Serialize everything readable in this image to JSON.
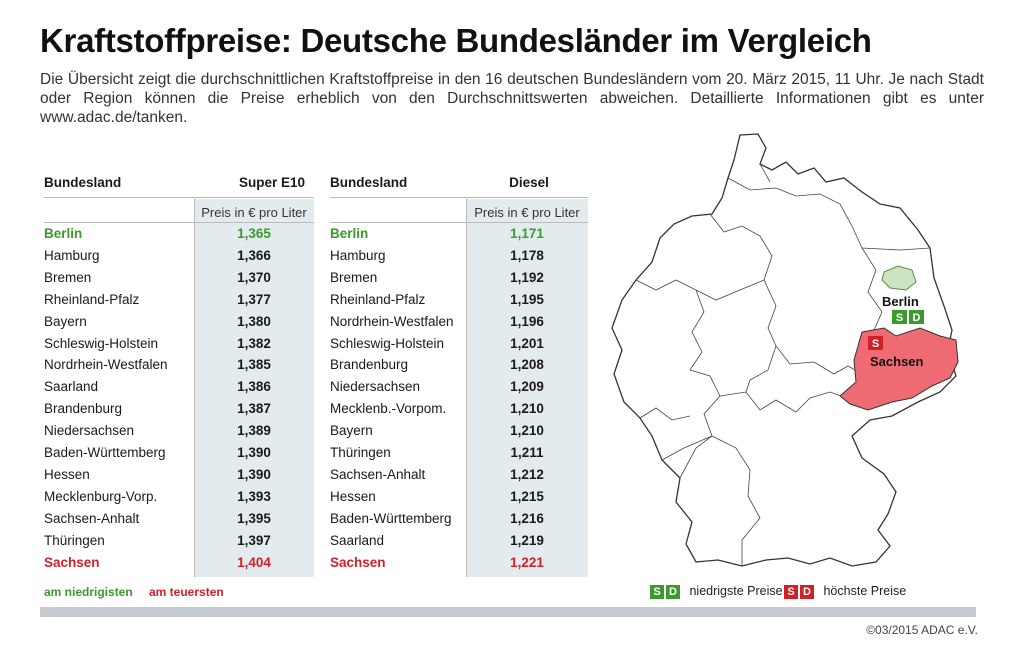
{
  "title": "Kraftstoffpreise: Deutsche Bundesländer im Vergleich",
  "intro": "Die Übersicht zeigt die durchschnittlichen Kraftstoffpreise in den 16 deutschen Bundesländern vom 20. März 2015, 11 Uhr. Je nach Stadt oder Region können die Preise erheblich von den Durchschnittswerten abweichen. Detaillierte Informationen gibt es unter www.adac.de/tanken.",
  "colors": {
    "green": "#3a9a2b",
    "red": "#d0202a",
    "shade": "#e4ebef",
    "sachsen_fill": "#ee6b74",
    "berlin_fill": "#cde4c2"
  },
  "super": {
    "col_label": "Bundesland",
    "fuel_label": "Super E10",
    "unit": "Preis in € pro Liter",
    "rows": [
      {
        "name": "Berlin",
        "value": "1,365"
      },
      {
        "name": "Hamburg",
        "value": "1,366"
      },
      {
        "name": "Bremen",
        "value": "1,370"
      },
      {
        "name": "Rheinland-Pfalz",
        "value": "1,377"
      },
      {
        "name": "Bayern",
        "value": "1,380"
      },
      {
        "name": "Schleswig-Holstein",
        "value": "1,382"
      },
      {
        "name": "Nordrhein-Westfalen",
        "value": "1,385"
      },
      {
        "name": "Saarland",
        "value": "1,386"
      },
      {
        "name": "Brandenburg",
        "value": "1,387"
      },
      {
        "name": "Niedersachsen",
        "value": "1,389"
      },
      {
        "name": "Baden-Württemberg",
        "value": "1,390"
      },
      {
        "name": "Hessen",
        "value": "1,390"
      },
      {
        "name": "Mecklenburg-Vorp.",
        "value": "1,393"
      },
      {
        "name": "Sachsen-Anhalt",
        "value": "1,395"
      },
      {
        "name": "Thüringen",
        "value": "1,397"
      },
      {
        "name": "Sachsen",
        "value": "1,404"
      }
    ]
  },
  "diesel": {
    "col_label": "Bundesland",
    "fuel_label": "Diesel",
    "unit": "Preis in € pro Liter",
    "rows": [
      {
        "name": "Berlin",
        "value": "1,171"
      },
      {
        "name": "Hamburg",
        "value": "1,178"
      },
      {
        "name": "Bremen",
        "value": "1,192"
      },
      {
        "name": "Rheinland-Pfalz",
        "value": "1,195"
      },
      {
        "name": "Nordrhein-Westfalen",
        "value": "1,196"
      },
      {
        "name": "Schleswig-Holstein",
        "value": "1,201"
      },
      {
        "name": "Brandenburg",
        "value": "1,208"
      },
      {
        "name": "Niedersachsen",
        "value": "1,209"
      },
      {
        "name": "Mecklenb.-Vorpom.",
        "value": "1,210"
      },
      {
        "name": "Bayern",
        "value": "1,210"
      },
      {
        "name": "Thüringen",
        "value": "1,211"
      },
      {
        "name": "Sachsen-Anhalt",
        "value": "1,212"
      },
      {
        "name": "Hessen",
        "value": "1,215"
      },
      {
        "name": "Baden-Württemberg",
        "value": "1,216"
      },
      {
        "name": "Saarland",
        "value": "1,219"
      },
      {
        "name": "Sachsen",
        "value": "1,221"
      }
    ]
  },
  "footer": {
    "lowest": "am niedrigisten",
    "highest": "am teuersten",
    "badge_s": "S",
    "badge_d": "D",
    "legend_low": "niedrigste Preise",
    "legend_high": "höchste Preise",
    "copyright": "©03/2015 ADAC e.V."
  },
  "map": {
    "berlin_label": "Berlin",
    "sachsen_label": "Sachsen"
  }
}
